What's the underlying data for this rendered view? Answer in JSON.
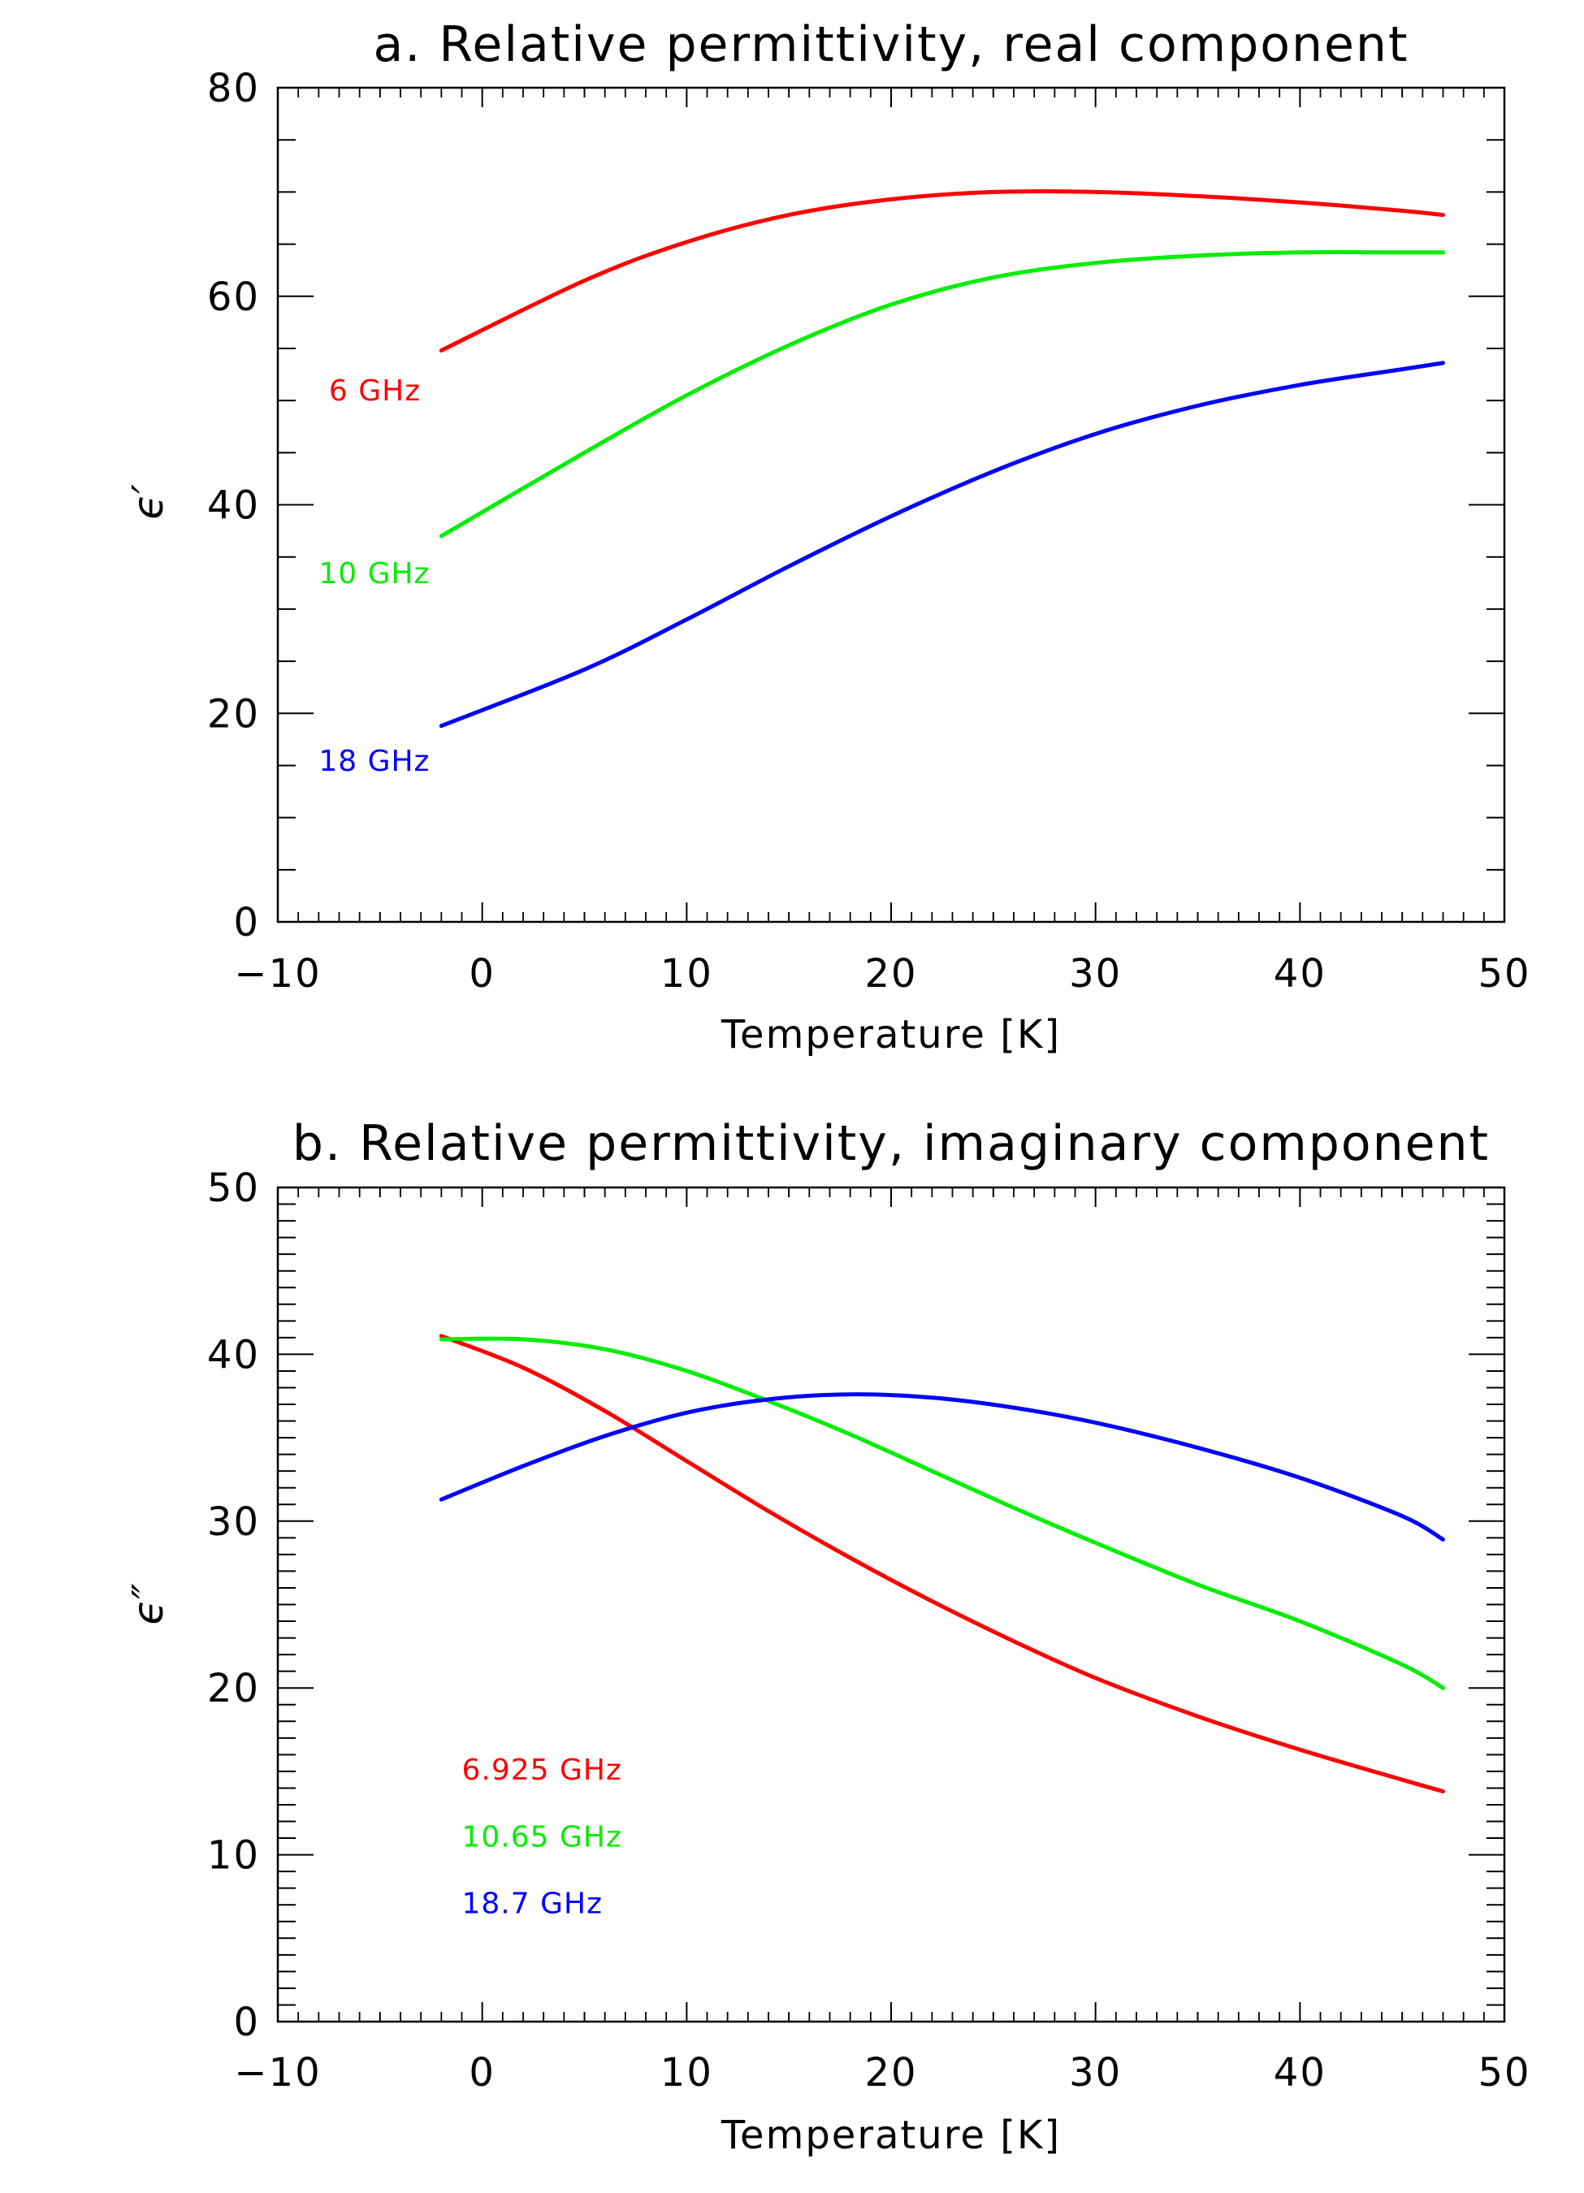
{
  "chart_data": [
    {
      "type": "line",
      "title": "a. Relative permittivity, real component",
      "xlabel": "Temperature [K]",
      "ylabel": "ϵ′",
      "xlim": [
        -10,
        50
      ],
      "ylim": [
        0,
        80
      ],
      "xticks": [
        -10,
        0,
        10,
        20,
        30,
        40,
        50
      ],
      "xtick_labels": [
        "−10",
        "0",
        "10",
        "20",
        "30",
        "40",
        "50"
      ],
      "yticks": [
        0,
        20,
        40,
        60,
        80
      ],
      "ytick_labels": [
        "0",
        "20",
        "40",
        "60",
        "80"
      ],
      "x": [
        -2,
        5,
        10,
        15,
        20,
        25,
        30,
        35,
        40,
        45,
        47
      ],
      "series": [
        {
          "name": "6 GHz",
          "color": "#ff0000",
          "label_pos": [
            -7.5,
            50
          ],
          "values": [
            54.8,
            61.5,
            65.2,
            67.8,
            69.3,
            70.0,
            70.0,
            69.6,
            69.0,
            68.2,
            67.8
          ]
        },
        {
          "name": "10 GHz",
          "color": "#00ee00",
          "label_pos": [
            -8,
            32.5
          ],
          "values": [
            37.0,
            45.0,
            50.5,
            55.3,
            59.2,
            61.8,
            63.2,
            63.9,
            64.2,
            64.2,
            64.2
          ]
        },
        {
          "name": "18 GHz",
          "color": "#0000ff",
          "label_pos": [
            -8,
            14.5
          ],
          "values": [
            18.8,
            24.2,
            29.0,
            34.1,
            38.9,
            43.2,
            46.8,
            49.5,
            51.5,
            53.0,
            53.6
          ]
        }
      ]
    },
    {
      "type": "line",
      "title": "b. Relative permittivity, imaginary component",
      "xlabel": "Temperature [K]",
      "ylabel": "ϵ″",
      "xlim": [
        -10,
        50
      ],
      "ylim": [
        0,
        50
      ],
      "xticks": [
        -10,
        0,
        10,
        20,
        30,
        40,
        50
      ],
      "xtick_labels": [
        "−10",
        "0",
        "10",
        "20",
        "30",
        "40",
        "50"
      ],
      "yticks": [
        0,
        10,
        20,
        30,
        40,
        50
      ],
      "ytick_labels": [
        "0",
        "10",
        "20",
        "30",
        "40",
        "50"
      ],
      "x": [
        -2,
        2,
        6,
        10,
        14,
        18,
        22,
        26,
        30,
        35,
        40,
        45,
        47
      ],
      "series": [
        {
          "name": "6.925 GHz",
          "color": "#ff0000",
          "label_pos": [
            -1,
            14.5
          ],
          "values": [
            41.1,
            39.2,
            36.6,
            33.6,
            30.6,
            27.8,
            25.2,
            22.8,
            20.6,
            18.3,
            16.3,
            14.5,
            13.8
          ]
        },
        {
          "name": "10.65 GHz",
          "color": "#00ee00",
          "label_pos": [
            -1,
            10.5
          ],
          "values": [
            40.9,
            40.9,
            40.3,
            39.0,
            37.2,
            35.2,
            33.0,
            30.8,
            28.7,
            26.2,
            24.0,
            21.4,
            20.0
          ]
        },
        {
          "name": "18.7 GHz",
          "color": "#0000ff",
          "label_pos": [
            -1,
            6.5
          ],
          "values": [
            31.3,
            33.3,
            35.1,
            36.5,
            37.3,
            37.6,
            37.4,
            36.8,
            35.9,
            34.4,
            32.6,
            30.3,
            28.9
          ]
        }
      ]
    }
  ]
}
